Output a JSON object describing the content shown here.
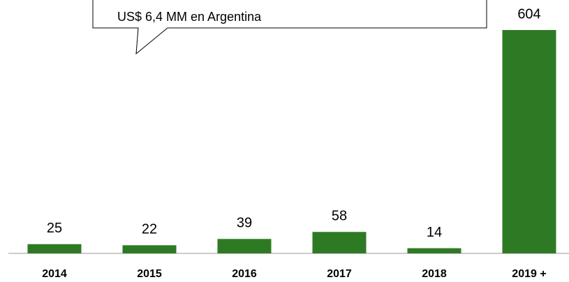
{
  "chart_data": {
    "type": "bar",
    "annotation": "US$ 6,4 MM en Argentina",
    "categories": [
      "2014",
      "2015",
      "2016",
      "2017",
      "2018",
      "2019 +"
    ],
    "values": [
      25,
      22,
      39,
      58,
      14,
      604
    ],
    "color": "#2e7a24"
  }
}
